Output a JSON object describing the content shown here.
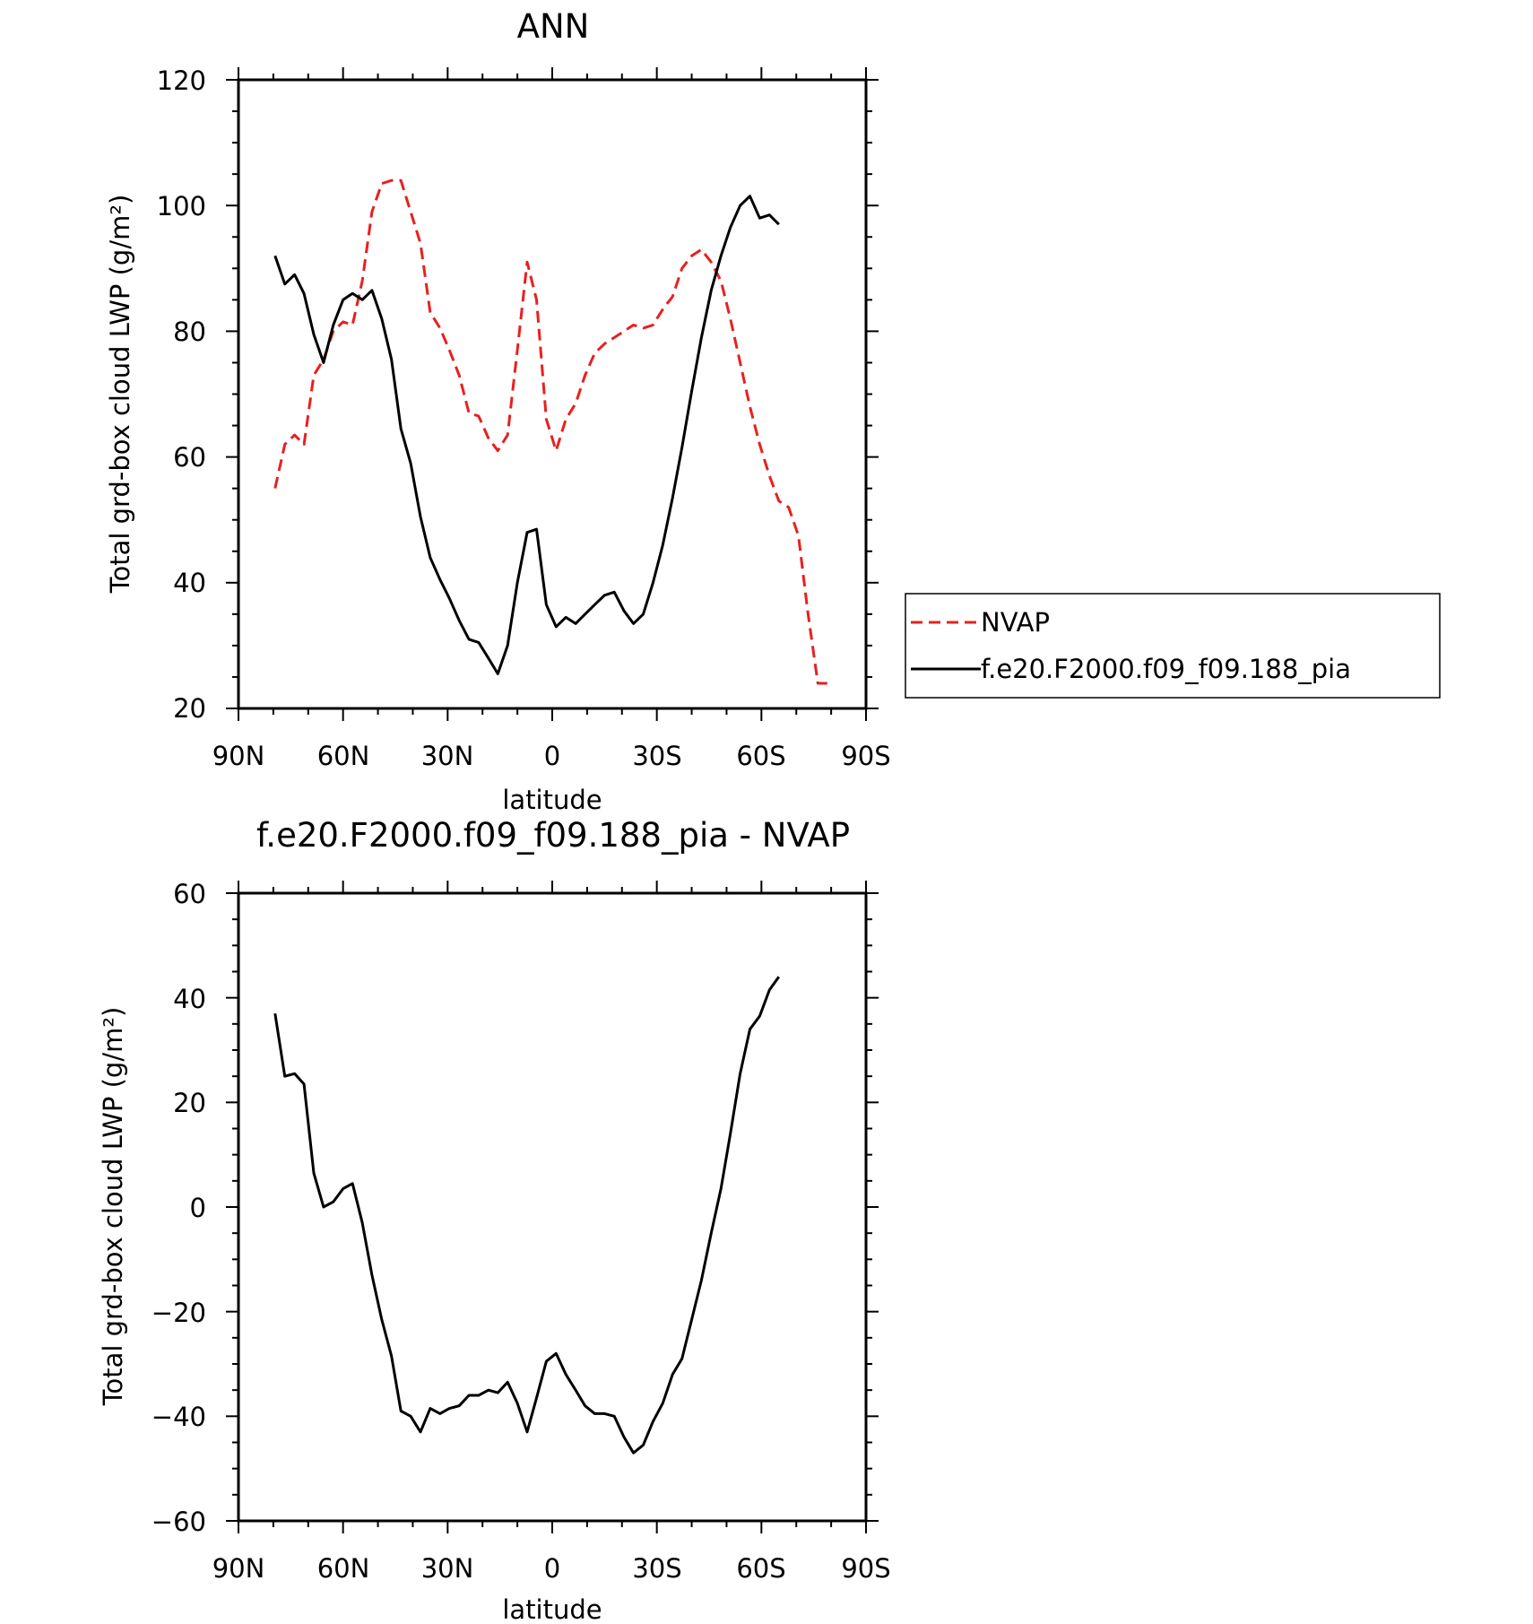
{
  "chart_data": [
    {
      "type": "line",
      "title": "ANN",
      "xlabel": "latitude",
      "ylabel": "Total grd-box cloud LWP (g/m²)",
      "xlim": [
        90,
        -90
      ],
      "ylim": [
        20,
        120
      ],
      "x_ticks": [
        90,
        60,
        30,
        0,
        -30,
        -60,
        -90
      ],
      "x_tick_labels": [
        "90N",
        "60N",
        "30N",
        "0",
        "30S",
        "60S",
        "90S"
      ],
      "y_ticks": [
        20,
        40,
        60,
        80,
        100,
        120
      ],
      "y_tick_labels": [
        "20",
        "40",
        "60",
        "80",
        "100",
        "120"
      ],
      "legend": {
        "placement": "right",
        "entries": [
          "NVAP",
          "f.e20.F2000.f09_f09.188_pia"
        ]
      },
      "series": [
        {
          "name": "NVAP",
          "color": "#e8201f",
          "dash": "dashed",
          "x": [
            79.5,
            76.7,
            73.9,
            71.2,
            68.4,
            65.6,
            62.8,
            60.0,
            57.3,
            54.5,
            51.7,
            48.9,
            46.1,
            43.4,
            40.6,
            37.8,
            35.0,
            32.2,
            29.5,
            26.7,
            23.9,
            21.1,
            18.3,
            15.6,
            12.8,
            10.0,
            7.2,
            4.5,
            1.7,
            -1.1,
            -3.9,
            -6.7,
            -9.4,
            -12.2,
            -15.0,
            -17.8,
            -20.6,
            -23.3,
            -26.1,
            -28.9,
            -31.7,
            -34.5,
            -37.2,
            -40.0,
            -42.8,
            -45.6,
            -48.4,
            -51.1,
            -53.9,
            -56.7,
            -59.5,
            -62.3,
            -65.0,
            -67.8,
            -70.6,
            -73.4,
            -76.2,
            -78.9
          ],
          "values": [
            55,
            62,
            63.5,
            62,
            73,
            75.5,
            80,
            81.5,
            81,
            88,
            99,
            103.5,
            104,
            104,
            99,
            94,
            83,
            80.5,
            77,
            73,
            67,
            66.5,
            63,
            61,
            63.5,
            77,
            91,
            85,
            66,
            61,
            66,
            68.5,
            73,
            76.5,
            78,
            79,
            80,
            81,
            80.5,
            81,
            83.5,
            85.5,
            90,
            92,
            93,
            91,
            88,
            82,
            75,
            68,
            62,
            57,
            53,
            52,
            47.5,
            35,
            24,
            24
          ]
        },
        {
          "name": "f.e20.F2000.f09_f09.188_pia",
          "color": "#000000",
          "dash": "solid",
          "x": [
            79.5,
            76.7,
            73.9,
            71.2,
            68.4,
            65.6,
            62.8,
            60.0,
            57.3,
            54.5,
            51.7,
            48.9,
            46.1,
            43.4,
            40.6,
            37.8,
            35.0,
            32.2,
            29.5,
            26.7,
            23.9,
            21.1,
            18.3,
            15.6,
            12.8,
            10.0,
            7.2,
            4.5,
            1.7,
            -1.1,
            -3.9,
            -6.7,
            -9.4,
            -12.2,
            -15.0,
            -17.8,
            -20.6,
            -23.3,
            -26.1,
            -28.9,
            -31.7,
            -34.5,
            -37.2,
            -40.0,
            -42.8,
            -45.6,
            -48.4,
            -51.1,
            -53.9,
            -56.7,
            -59.5,
            -62.3,
            -65.0
          ],
          "values": [
            92,
            87.5,
            89,
            86,
            79.5,
            75,
            81,
            85,
            86,
            85,
            86.5,
            82,
            75.5,
            64.5,
            59,
            50.5,
            44,
            40.5,
            37.5,
            34,
            31,
            30.5,
            28,
            25.5,
            30,
            40,
            48,
            48.5,
            36.5,
            33,
            34.5,
            33.5,
            35,
            36.5,
            38,
            38.5,
            35.5,
            33.5,
            35,
            40,
            46,
            53.5,
            61.5,
            70.5,
            79,
            86.5,
            92,
            96.5,
            100,
            101.5,
            98,
            98.5,
            97
          ]
        }
      ]
    },
    {
      "type": "line",
      "title": "f.e20.F2000.f09_f09.188_pia - NVAP",
      "xlabel": "latitude",
      "ylabel": "Total grd-box cloud LWP (g/m²)",
      "xlim": [
        90,
        -90
      ],
      "ylim": [
        -60,
        60
      ],
      "x_ticks": [
        90,
        60,
        30,
        0,
        -30,
        -60,
        -90
      ],
      "x_tick_labels": [
        "90N",
        "60N",
        "30N",
        "0",
        "30S",
        "60S",
        "90S"
      ],
      "y_ticks": [
        -60,
        -40,
        -20,
        0,
        20,
        40,
        60
      ],
      "y_tick_labels": [
        "−60",
        "−40",
        "−20",
        "0",
        "20",
        "40",
        "60"
      ],
      "series": [
        {
          "color": "#000000",
          "dash": "solid",
          "x": [
            79.5,
            76.7,
            73.9,
            71.2,
            68.4,
            65.6,
            62.8,
            60.0,
            57.3,
            54.5,
            51.7,
            48.9,
            46.1,
            43.4,
            40.6,
            37.8,
            35.0,
            32.2,
            29.5,
            26.7,
            23.9,
            21.1,
            18.3,
            15.6,
            12.8,
            10.0,
            7.2,
            4.5,
            1.7,
            -1.1,
            -3.9,
            -6.7,
            -9.4,
            -12.2,
            -15.0,
            -17.8,
            -20.6,
            -23.3,
            -26.1,
            -28.9,
            -31.7,
            -34.5,
            -37.2,
            -40.0,
            -42.8,
            -45.6,
            -48.4,
            -51.1,
            -53.9,
            -56.7,
            -59.5,
            -62.3,
            -65.0
          ],
          "values": [
            37,
            25,
            25.5,
            23.5,
            6.5,
            0,
            1,
            3.5,
            4.5,
            -3,
            -13,
            -21.5,
            -28.5,
            -39,
            -40,
            -43,
            -38.5,
            -39.5,
            -38.5,
            -38,
            -36,
            -36,
            -35,
            -35.5,
            -33.5,
            -37.5,
            -43,
            -36.5,
            -29.5,
            -28,
            -32,
            -35,
            -38,
            -39.5,
            -39.5,
            -40,
            -44,
            -47,
            -45.5,
            -41,
            -37.5,
            -32,
            -29,
            -21.5,
            -14,
            -5,
            3.5,
            14,
            25.5,
            34,
            36.5,
            41.5,
            44
          ]
        }
      ]
    }
  ]
}
